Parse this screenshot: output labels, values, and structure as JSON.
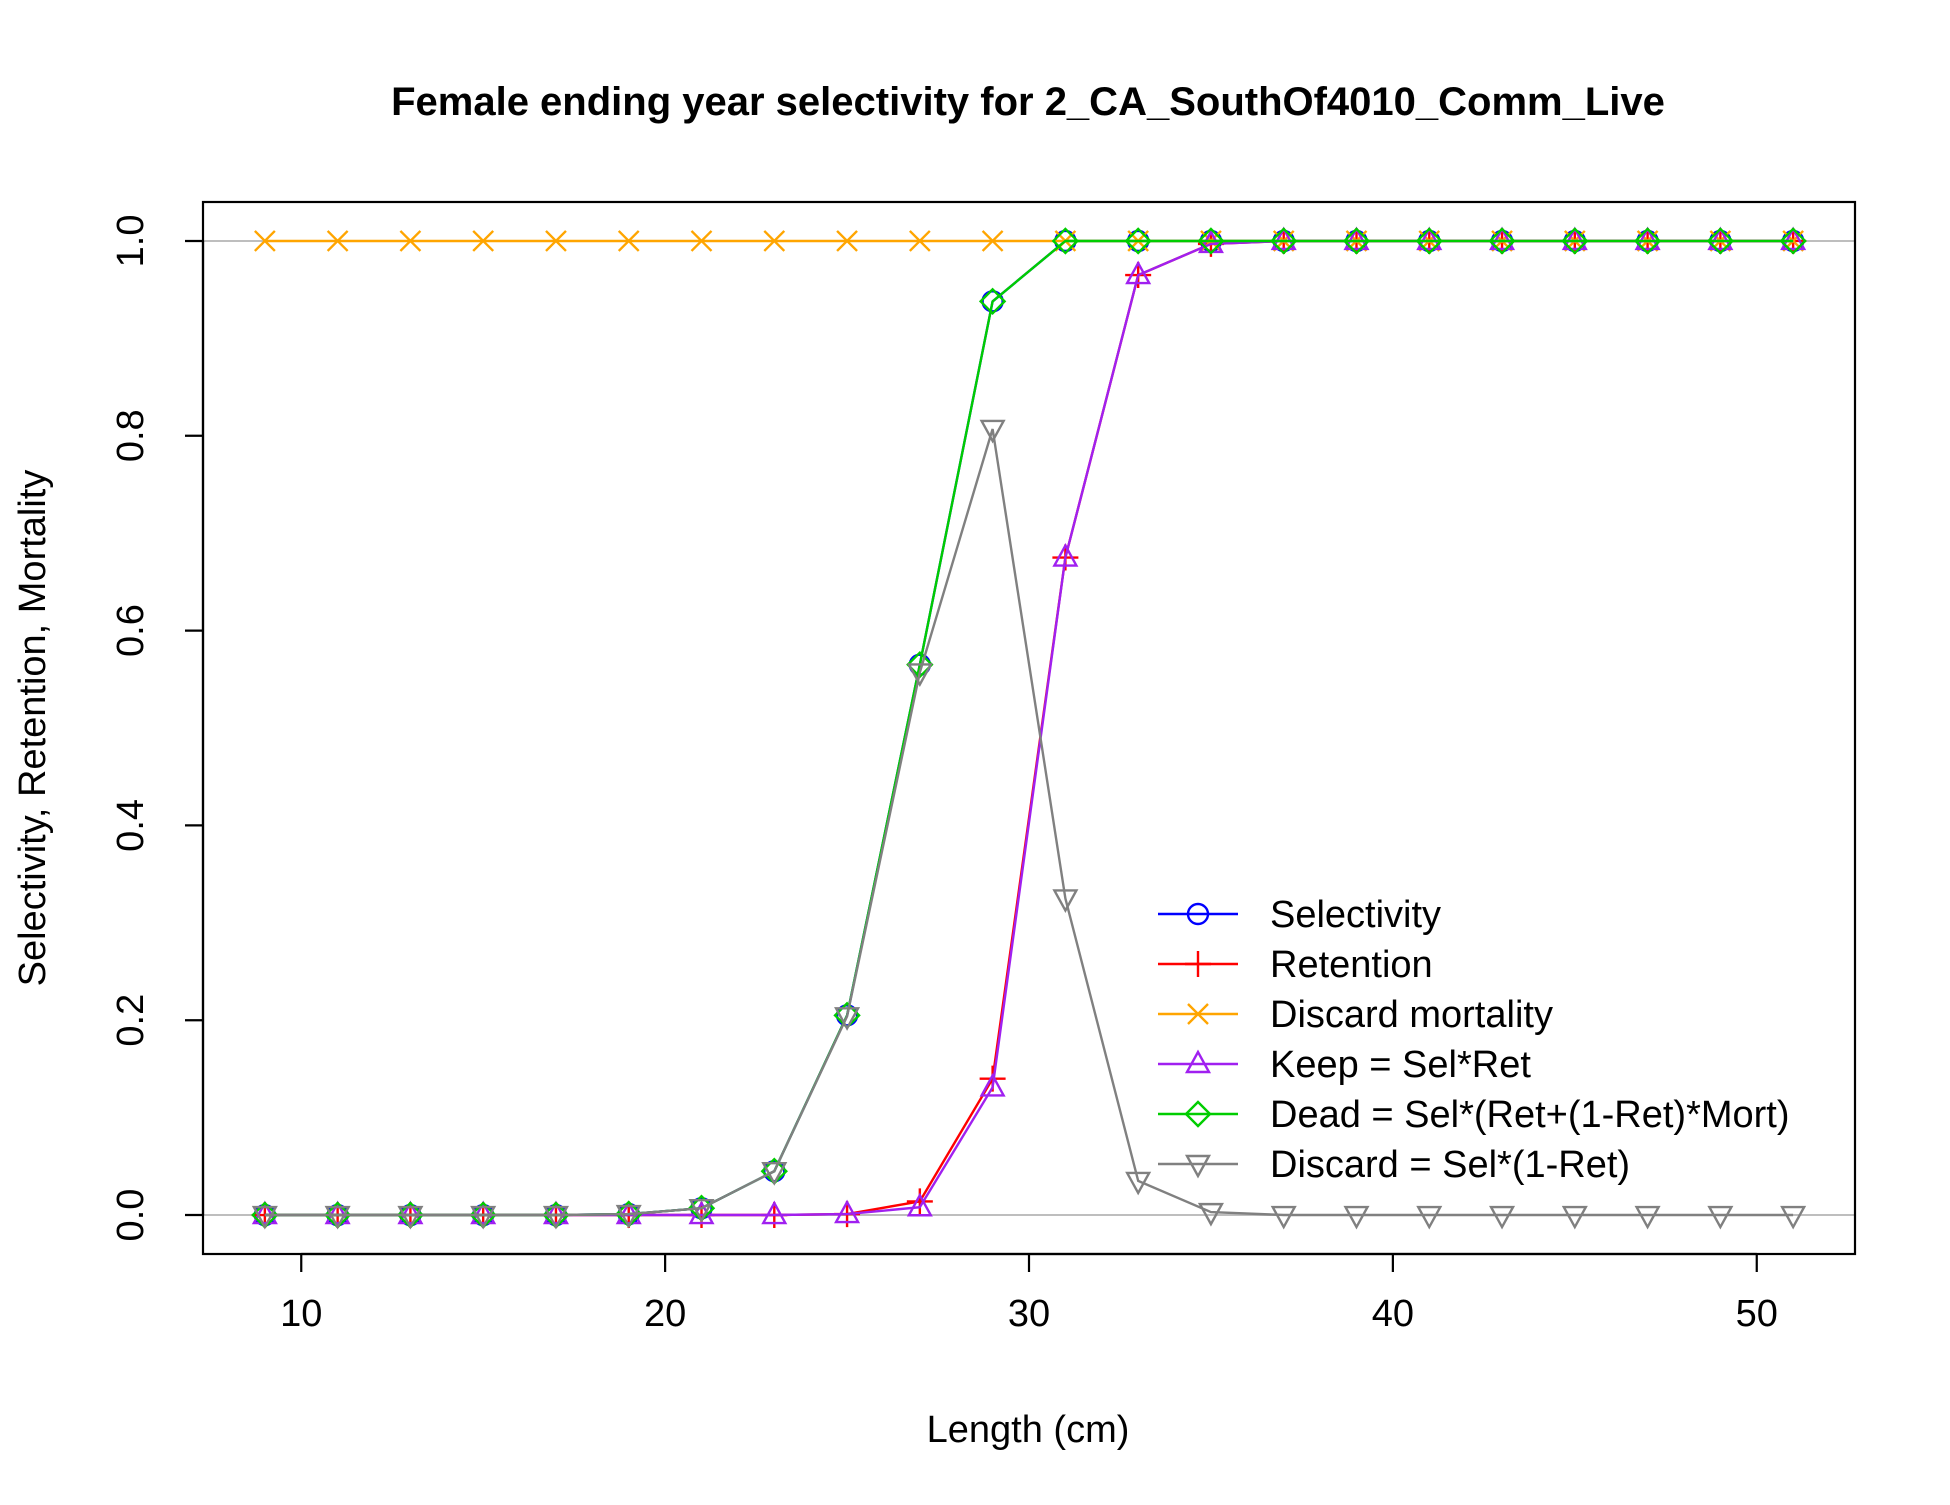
{
  "chart_data": {
    "type": "line",
    "title": "Female ending year selectivity for 2_CA_SouthOf4010_Comm_Live",
    "xlabel": "Length (cm)",
    "ylabel": "Selectivity, Retention, Mortality",
    "xlim": [
      7.3,
      52.7
    ],
    "ylim": [
      -0.04,
      1.04
    ],
    "x_ticks": [
      10,
      20,
      30,
      40,
      50
    ],
    "y_ticks": [
      0.0,
      0.2,
      0.4,
      0.6,
      0.8,
      1.0
    ],
    "y_tick_labels": [
      "0.0",
      "0.2",
      "0.4",
      "0.6",
      "0.8",
      "1.0"
    ],
    "reference_lines": [
      0,
      1
    ],
    "reference_line_color": "#BEBEBE",
    "legend_position": "bottom-right",
    "x": [
      9,
      11,
      13,
      15,
      17,
      19,
      21,
      23,
      25,
      27,
      29,
      31,
      33,
      35,
      37,
      39,
      41,
      43,
      45,
      47,
      49,
      51
    ],
    "series": [
      {
        "name": "Selectivity",
        "color": "#0000FF",
        "marker": "circle",
        "values": [
          0,
          0,
          0,
          0,
          0,
          0.001,
          0.007,
          0.045,
          0.205,
          0.565,
          0.938,
          1,
          1,
          1,
          1,
          1,
          1,
          1,
          1,
          1,
          1,
          1
        ]
      },
      {
        "name": "Retention",
        "color": "#FF0000",
        "marker": "plus",
        "values": [
          0,
          0,
          0,
          0,
          0,
          0,
          0,
          0,
          0.001,
          0.014,
          0.14,
          0.675,
          0.965,
          0.997,
          1,
          1,
          1,
          1,
          1,
          1,
          1,
          1
        ]
      },
      {
        "name": "Discard mortality",
        "color": "#FFA500",
        "marker": "x",
        "values": [
          1,
          1,
          1,
          1,
          1,
          1,
          1,
          1,
          1,
          1,
          1,
          1,
          1,
          1,
          1,
          1,
          1,
          1,
          1,
          1,
          1,
          1
        ]
      },
      {
        "name": "Keep = Sel*Ret",
        "color": "#A020F0",
        "marker": "triangle-up",
        "values": [
          0,
          0,
          0,
          0,
          0,
          0,
          0,
          0,
          0.001,
          0.008,
          0.131,
          0.675,
          0.965,
          0.997,
          1,
          1,
          1,
          1,
          1,
          1,
          1,
          1
        ]
      },
      {
        "name": "Dead = Sel*(Ret+(1-Ret)*Mort)",
        "color": "#00CD00",
        "marker": "diamond",
        "values": [
          0,
          0,
          0,
          0,
          0,
          0.001,
          0.007,
          0.045,
          0.205,
          0.565,
          0.938,
          1,
          1,
          1,
          1,
          1,
          1,
          1,
          1,
          1,
          1,
          1
        ]
      },
      {
        "name": "Discard = Sel*(1-Ret)",
        "color": "#808080",
        "marker": "triangle-down",
        "values": [
          0,
          0,
          0,
          0,
          0,
          0.001,
          0.007,
          0.045,
          0.204,
          0.557,
          0.807,
          0.325,
          0.035,
          0.003,
          0,
          0,
          0,
          0,
          0,
          0,
          0,
          0
        ]
      }
    ]
  }
}
